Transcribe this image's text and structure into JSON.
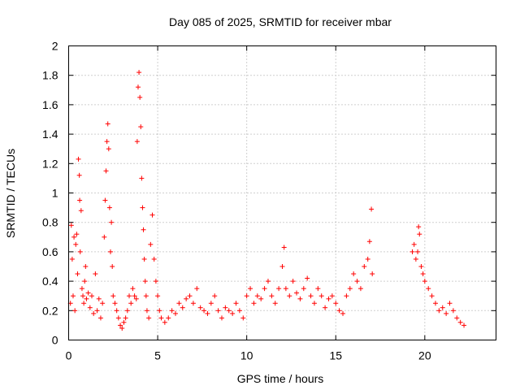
{
  "chart_data": {
    "type": "scatter",
    "title": "Day 085 of 2025, SRMTID for receiver mbar",
    "xlabel": "GPS time / hours",
    "ylabel": "SRMTID / TECUs",
    "xlim": [
      0,
      24
    ],
    "ylim": [
      0,
      2
    ],
    "x_ticks": [
      0,
      5,
      10,
      15,
      20
    ],
    "y_ticks": [
      0,
      0.2,
      0.4,
      0.6,
      0.8,
      1,
      1.2,
      1.4,
      1.6,
      1.8,
      2
    ],
    "x_tick_labels": [
      "0",
      "5",
      "10",
      "15",
      "20"
    ],
    "y_tick_labels": [
      "0",
      "0.2",
      "0.4",
      "0.6",
      "0.8",
      "1",
      "1.2",
      "1.4",
      "1.6",
      "1.8",
      "2"
    ],
    "grid": true,
    "marker": "+",
    "marker_color": "#ff0000",
    "series": [
      {
        "name": "SRMTID",
        "points": [
          [
            0.1,
            0.25
          ],
          [
            0.15,
            0.78
          ],
          [
            0.2,
            0.55
          ],
          [
            0.25,
            0.3
          ],
          [
            0.3,
            0.7
          ],
          [
            0.35,
            0.2
          ],
          [
            0.4,
            0.65
          ],
          [
            0.45,
            0.72
          ],
          [
            0.5,
            0.45
          ],
          [
            0.55,
            1.23
          ],
          [
            0.6,
            1.12
          ],
          [
            0.62,
            0.95
          ],
          [
            0.65,
            0.6
          ],
          [
            0.7,
            0.88
          ],
          [
            0.75,
            0.35
          ],
          [
            0.8,
            0.3
          ],
          [
            0.85,
            0.25
          ],
          [
            0.9,
            0.4
          ],
          [
            0.95,
            0.5
          ],
          [
            1.0,
            0.28
          ],
          [
            1.1,
            0.32
          ],
          [
            1.2,
            0.22
          ],
          [
            1.3,
            0.3
          ],
          [
            1.4,
            0.18
          ],
          [
            1.5,
            0.45
          ],
          [
            1.6,
            0.2
          ],
          [
            1.7,
            0.28
          ],
          [
            1.8,
            0.15
          ],
          [
            1.9,
            0.25
          ],
          [
            2.0,
            0.7
          ],
          [
            2.05,
            0.95
          ],
          [
            2.1,
            1.15
          ],
          [
            2.15,
            1.35
          ],
          [
            2.2,
            1.47
          ],
          [
            2.25,
            1.3
          ],
          [
            2.3,
            0.9
          ],
          [
            2.35,
            0.6
          ],
          [
            2.4,
            0.8
          ],
          [
            2.45,
            0.5
          ],
          [
            2.5,
            0.3
          ],
          [
            2.6,
            0.25
          ],
          [
            2.7,
            0.2
          ],
          [
            2.8,
            0.15
          ],
          [
            2.9,
            0.1
          ],
          [
            3.0,
            0.08
          ],
          [
            3.1,
            0.12
          ],
          [
            3.2,
            0.15
          ],
          [
            3.3,
            0.2
          ],
          [
            3.4,
            0.3
          ],
          [
            3.5,
            0.25
          ],
          [
            3.6,
            0.35
          ],
          [
            3.7,
            0.3
          ],
          [
            3.8,
            0.28
          ],
          [
            3.85,
            1.35
          ],
          [
            3.9,
            1.72
          ],
          [
            3.95,
            1.82
          ],
          [
            4.0,
            1.65
          ],
          [
            4.05,
            1.45
          ],
          [
            4.1,
            1.1
          ],
          [
            4.15,
            0.9
          ],
          [
            4.2,
            0.75
          ],
          [
            4.25,
            0.55
          ],
          [
            4.3,
            0.4
          ],
          [
            4.35,
            0.3
          ],
          [
            4.4,
            0.2
          ],
          [
            4.5,
            0.15
          ],
          [
            4.6,
            0.65
          ],
          [
            4.7,
            0.85
          ],
          [
            4.8,
            0.55
          ],
          [
            4.9,
            0.4
          ],
          [
            5.0,
            0.3
          ],
          [
            5.1,
            0.2
          ],
          [
            5.2,
            0.15
          ],
          [
            5.4,
            0.12
          ],
          [
            5.6,
            0.15
          ],
          [
            5.8,
            0.2
          ],
          [
            6.0,
            0.18
          ],
          [
            6.2,
            0.25
          ],
          [
            6.4,
            0.22
          ],
          [
            6.6,
            0.28
          ],
          [
            6.8,
            0.3
          ],
          [
            7.0,
            0.25
          ],
          [
            7.2,
            0.35
          ],
          [
            7.4,
            0.22
          ],
          [
            7.6,
            0.2
          ],
          [
            7.8,
            0.18
          ],
          [
            8.0,
            0.25
          ],
          [
            8.2,
            0.3
          ],
          [
            8.4,
            0.2
          ],
          [
            8.6,
            0.15
          ],
          [
            8.8,
            0.22
          ],
          [
            9.0,
            0.2
          ],
          [
            9.2,
            0.18
          ],
          [
            9.4,
            0.25
          ],
          [
            9.6,
            0.2
          ],
          [
            9.8,
            0.15
          ],
          [
            10.0,
            0.3
          ],
          [
            10.2,
            0.35
          ],
          [
            10.4,
            0.25
          ],
          [
            10.6,
            0.3
          ],
          [
            10.8,
            0.28
          ],
          [
            11.0,
            0.35
          ],
          [
            11.2,
            0.4
          ],
          [
            11.4,
            0.3
          ],
          [
            11.6,
            0.25
          ],
          [
            11.8,
            0.35
          ],
          [
            12.0,
            0.5
          ],
          [
            12.1,
            0.63
          ],
          [
            12.2,
            0.35
          ],
          [
            12.4,
            0.3
          ],
          [
            12.6,
            0.4
          ],
          [
            12.8,
            0.32
          ],
          [
            13.0,
            0.28
          ],
          [
            13.2,
            0.35
          ],
          [
            13.4,
            0.42
          ],
          [
            13.6,
            0.3
          ],
          [
            13.8,
            0.25
          ],
          [
            14.0,
            0.35
          ],
          [
            14.2,
            0.3
          ],
          [
            14.4,
            0.22
          ],
          [
            14.6,
            0.28
          ],
          [
            14.8,
            0.3
          ],
          [
            15.0,
            0.25
          ],
          [
            15.2,
            0.2
          ],
          [
            15.4,
            0.18
          ],
          [
            15.6,
            0.3
          ],
          [
            15.8,
            0.35
          ],
          [
            16.0,
            0.45
          ],
          [
            16.2,
            0.4
          ],
          [
            16.4,
            0.35
          ],
          [
            16.6,
            0.5
          ],
          [
            16.8,
            0.55
          ],
          [
            16.9,
            0.67
          ],
          [
            17.0,
            0.89
          ],
          [
            17.05,
            0.45
          ],
          [
            19.3,
            0.6
          ],
          [
            19.4,
            0.65
          ],
          [
            19.5,
            0.55
          ],
          [
            19.6,
            0.6
          ],
          [
            19.65,
            0.77
          ],
          [
            19.7,
            0.72
          ],
          [
            19.8,
            0.5
          ],
          [
            19.9,
            0.45
          ],
          [
            20.0,
            0.4
          ],
          [
            20.2,
            0.35
          ],
          [
            20.4,
            0.3
          ],
          [
            20.6,
            0.25
          ],
          [
            20.8,
            0.2
          ],
          [
            21.0,
            0.22
          ],
          [
            21.2,
            0.18
          ],
          [
            21.4,
            0.25
          ],
          [
            21.6,
            0.2
          ],
          [
            21.8,
            0.15
          ],
          [
            22.0,
            0.12
          ],
          [
            22.2,
            0.1
          ]
        ]
      }
    ]
  }
}
